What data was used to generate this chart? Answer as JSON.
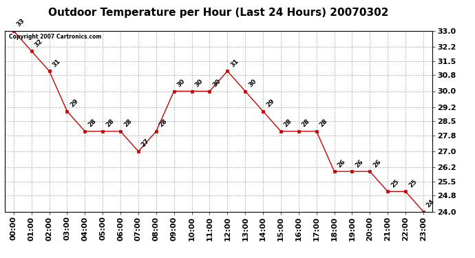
{
  "title": "Outdoor Temperature per Hour (Last 24 Hours) 20070302",
  "copyright_text": "Copyright 2007 Cartronics.com",
  "hours": [
    "00:00",
    "01:00",
    "02:00",
    "03:00",
    "04:00",
    "05:00",
    "06:00",
    "07:00",
    "08:00",
    "09:00",
    "10:00",
    "11:00",
    "12:00",
    "13:00",
    "14:00",
    "15:00",
    "16:00",
    "17:00",
    "18:00",
    "19:00",
    "20:00",
    "21:00",
    "22:00",
    "23:00"
  ],
  "temperatures": [
    33,
    32,
    31,
    29,
    28,
    28,
    28,
    27,
    28,
    30,
    30,
    30,
    31,
    30,
    29,
    28,
    28,
    28,
    26,
    26,
    26,
    25,
    25,
    24
  ],
  "line_color": "#cc0000",
  "marker_color": "#cc0000",
  "bg_color": "#ffffff",
  "grid_color": "#aaaaaa",
  "ylim_min": 24.0,
  "ylim_max": 33.0,
  "yticks": [
    24.0,
    24.8,
    25.5,
    26.2,
    27.0,
    27.8,
    28.5,
    29.2,
    30.0,
    30.8,
    31.5,
    32.2,
    33.0
  ],
  "label_fontsize": 8,
  "title_fontsize": 11,
  "annotation_fontsize": 6.5
}
